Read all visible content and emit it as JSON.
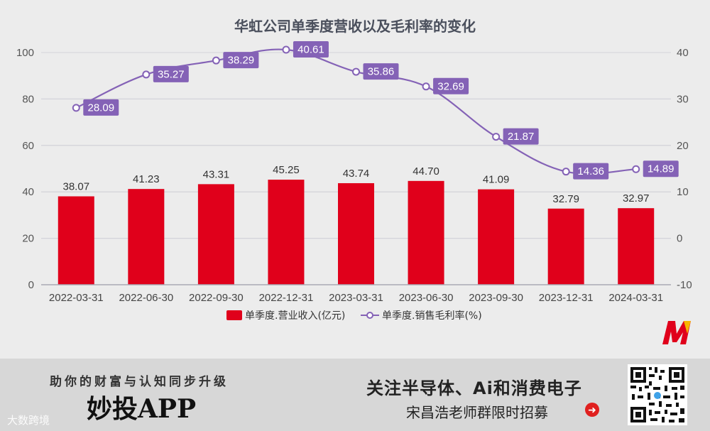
{
  "chart_data": {
    "type": "bar+line",
    "title": "华虹公司单季度营收以及毛利率的变化",
    "categories": [
      "2022-03-31",
      "2022-06-30",
      "2022-09-30",
      "2022-12-31",
      "2023-03-31",
      "2023-06-30",
      "2023-09-30",
      "2023-12-31",
      "2024-03-31"
    ],
    "series": [
      {
        "name": "单季度.营业收入(亿元)",
        "type": "bar",
        "axis": "left",
        "color": "#e0001b",
        "values": [
          38.07,
          41.23,
          43.31,
          45.25,
          43.74,
          44.7,
          41.09,
          32.79,
          32.97
        ],
        "labels": [
          "38.07",
          "41.23",
          "43.31",
          "45.25",
          "43.74",
          "44.70",
          "41.09",
          "32.79",
          "32.97"
        ]
      },
      {
        "name": "单季度.销售毛利率(%)",
        "type": "line",
        "axis": "right",
        "color": "#8462b6",
        "values": [
          28.09,
          35.27,
          38.29,
          40.61,
          35.86,
          32.69,
          21.87,
          14.36,
          14.89
        ],
        "labels": [
          "28.09",
          "35.27",
          "38.29",
          "40.61",
          "35.86",
          "32.69",
          "21.87",
          "14.36",
          "14.89"
        ]
      }
    ],
    "y_left": {
      "min": 0,
      "max": 100,
      "ticks": [
        0,
        20,
        40,
        60,
        80,
        100
      ],
      "tick_labels": [
        "0",
        "20",
        "40",
        "60",
        "80",
        "100"
      ]
    },
    "y_right": {
      "min": -10,
      "max": 40,
      "ticks": [
        -10,
        0,
        10,
        20,
        30,
        40
      ],
      "tick_labels": [
        "-10",
        "0",
        "10",
        "20",
        "30",
        "40"
      ]
    },
    "grid": true,
    "legend_position": "bottom"
  },
  "logo": {
    "name": "m-logo-icon"
  },
  "footer": {
    "slogan": "助你的财富与认知同步升级",
    "app_name": "妙投APP",
    "watermark": "大数跨境",
    "focus_line": "关注半导体、Ai和消费电子",
    "group_line": "宋昌浩老师群限时招募",
    "arrow_icon": "arrow-right-icon",
    "qr_icon": "qr-code-icon"
  },
  "colors": {
    "bar": "#e0001b",
    "line": "#8462b6",
    "background": "#ececec",
    "footer_bg": "#d7d7d7"
  }
}
